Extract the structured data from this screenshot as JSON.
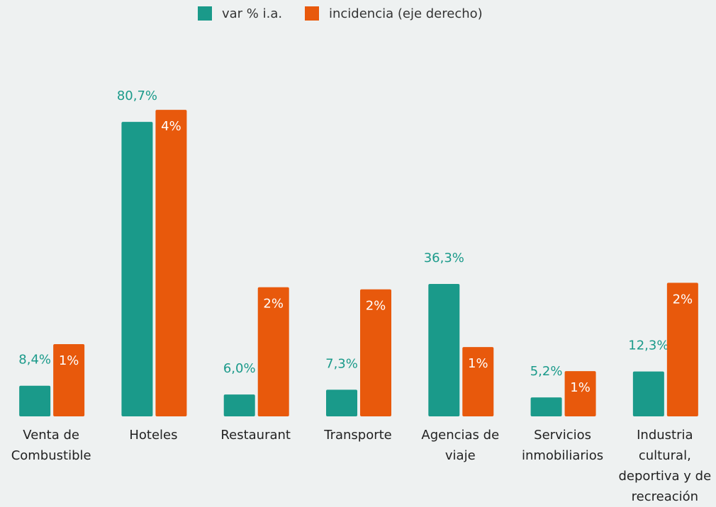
{
  "chart_data": {
    "type": "bar",
    "categories": [
      "Venta de Combustible",
      "Hoteles",
      "Restaurant",
      "Transporte",
      "Agencias de viaje",
      "Servicios inmobiliarios",
      "Industria cultural, deportiva y de recreación"
    ],
    "series": [
      {
        "name": "var % i.a.",
        "color": "#1a9a8a",
        "values": [
          8.4,
          80.7,
          6.0,
          7.3,
          36.3,
          5.2,
          12.3
        ],
        "value_labels": [
          "8,4%",
          "80,7%",
          "6,0%",
          "7,3%",
          "36,3%",
          "5,2%",
          "12,3%"
        ]
      },
      {
        "name": "incidencia (eje derecho)",
        "color": "#e8590c",
        "axis": "y2",
        "values": [
          0.99,
          4.2,
          1.77,
          1.74,
          0.95,
          0.62,
          1.83
        ],
        "value_labels": [
          "1%",
          "4%",
          "2%",
          "2%",
          "1%",
          "1%",
          "2%"
        ]
      }
    ],
    "ylim": [
      0,
      85
    ],
    "y2lim": [
      0,
      4.25
    ],
    "legend": "top"
  }
}
